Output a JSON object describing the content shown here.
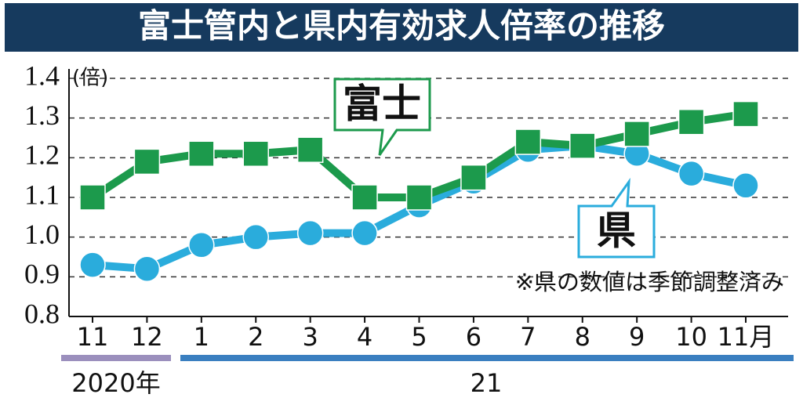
{
  "chart_data": {
    "type": "line",
    "title": "富士管内と県内有効求人倍率の推移",
    "y_unit": "(倍)",
    "note": "※県の数値は季節調整済み",
    "categories": [
      "11",
      "12",
      "1",
      "2",
      "3",
      "4",
      "5",
      "6",
      "7",
      "8",
      "9",
      "10",
      "11月"
    ],
    "periods": [
      "2020年",
      "21"
    ],
    "series": [
      {
        "name": "県",
        "color": "#2aacdc",
        "marker": "circle",
        "values": [
          0.93,
          0.92,
          0.98,
          1.0,
          1.01,
          1.01,
          1.08,
          1.14,
          1.22,
          1.23,
          1.21,
          1.16,
          1.13
        ]
      },
      {
        "name": "富士",
        "color": "#1c9a4c",
        "marker": "square",
        "values": [
          1.1,
          1.19,
          1.21,
          1.21,
          1.22,
          1.1,
          1.1,
          1.15,
          1.24,
          1.23,
          1.26,
          1.29,
          1.31
        ]
      }
    ],
    "ylim": [
      0.8,
      1.4
    ],
    "yticks": [
      {
        "value": 0.8,
        "label": "0.8"
      },
      {
        "value": 0.9,
        "label": "0.9"
      },
      {
        "value": 1,
        "label": "1.0"
      },
      {
        "value": 1.1,
        "label": "1.1"
      },
      {
        "value": 1.2,
        "label": "1.2"
      },
      {
        "value": 1.3,
        "label": "1.3"
      },
      {
        "value": 1.4,
        "label": "1.4"
      }
    ],
    "grid": true
  }
}
